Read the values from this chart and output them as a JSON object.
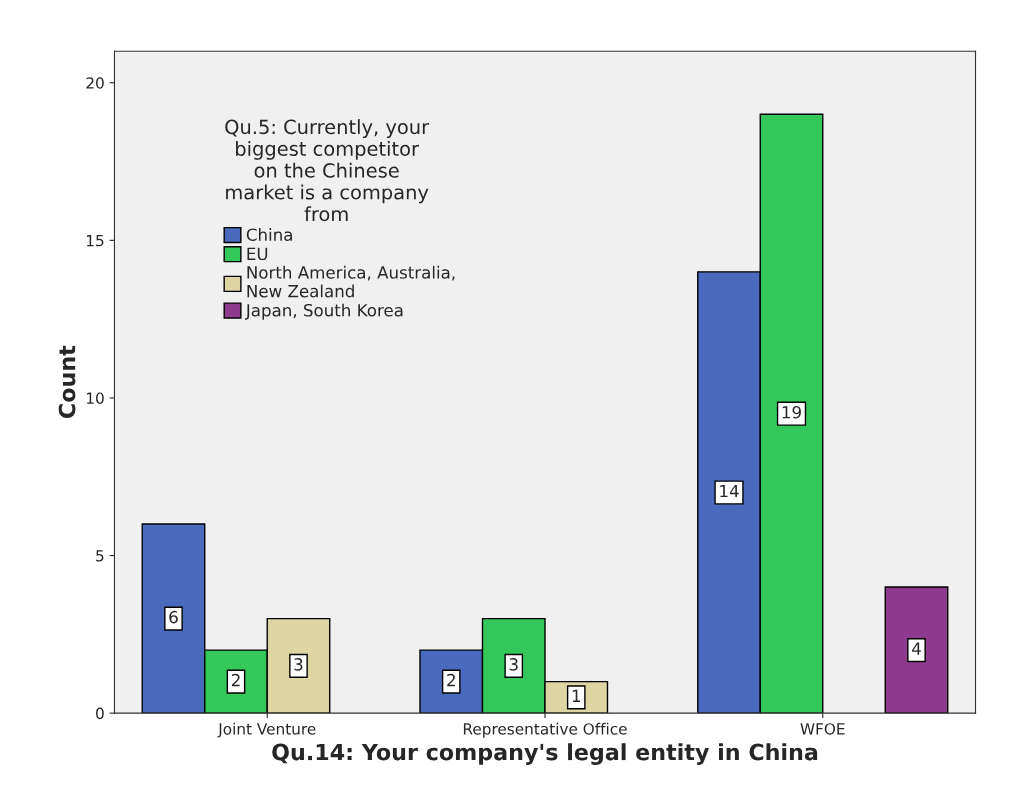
{
  "chart_data": {
    "type": "bar",
    "xlabel": "Qu.14: Your company's legal entity in China",
    "ylabel": "Count",
    "legend_title": "Qu.5: Currently, your\nbiggest competitor\non the Chinese\nmarket is a company\nfrom",
    "categories": [
      "Joint Venture",
      "Representative Office",
      "WFOE"
    ],
    "series": [
      {
        "name": "China",
        "color": "#4a6bbd",
        "values": [
          6,
          2,
          14
        ]
      },
      {
        "name": "EU",
        "color": "#34c759",
        "values": [
          2,
          3,
          19
        ]
      },
      {
        "name": "North America, Australia,\nNew Zealand",
        "color": "#ddd6a2",
        "values": [
          3,
          1,
          null
        ]
      },
      {
        "name": "Japan, South Korea",
        "color": "#8e3a8e",
        "values": [
          null,
          null,
          4
        ]
      }
    ],
    "ylim": [
      0,
      21
    ],
    "yticks": [
      0,
      5,
      10,
      15,
      20
    ],
    "grid": false,
    "legend": "top left",
    "data_labels": true
  }
}
